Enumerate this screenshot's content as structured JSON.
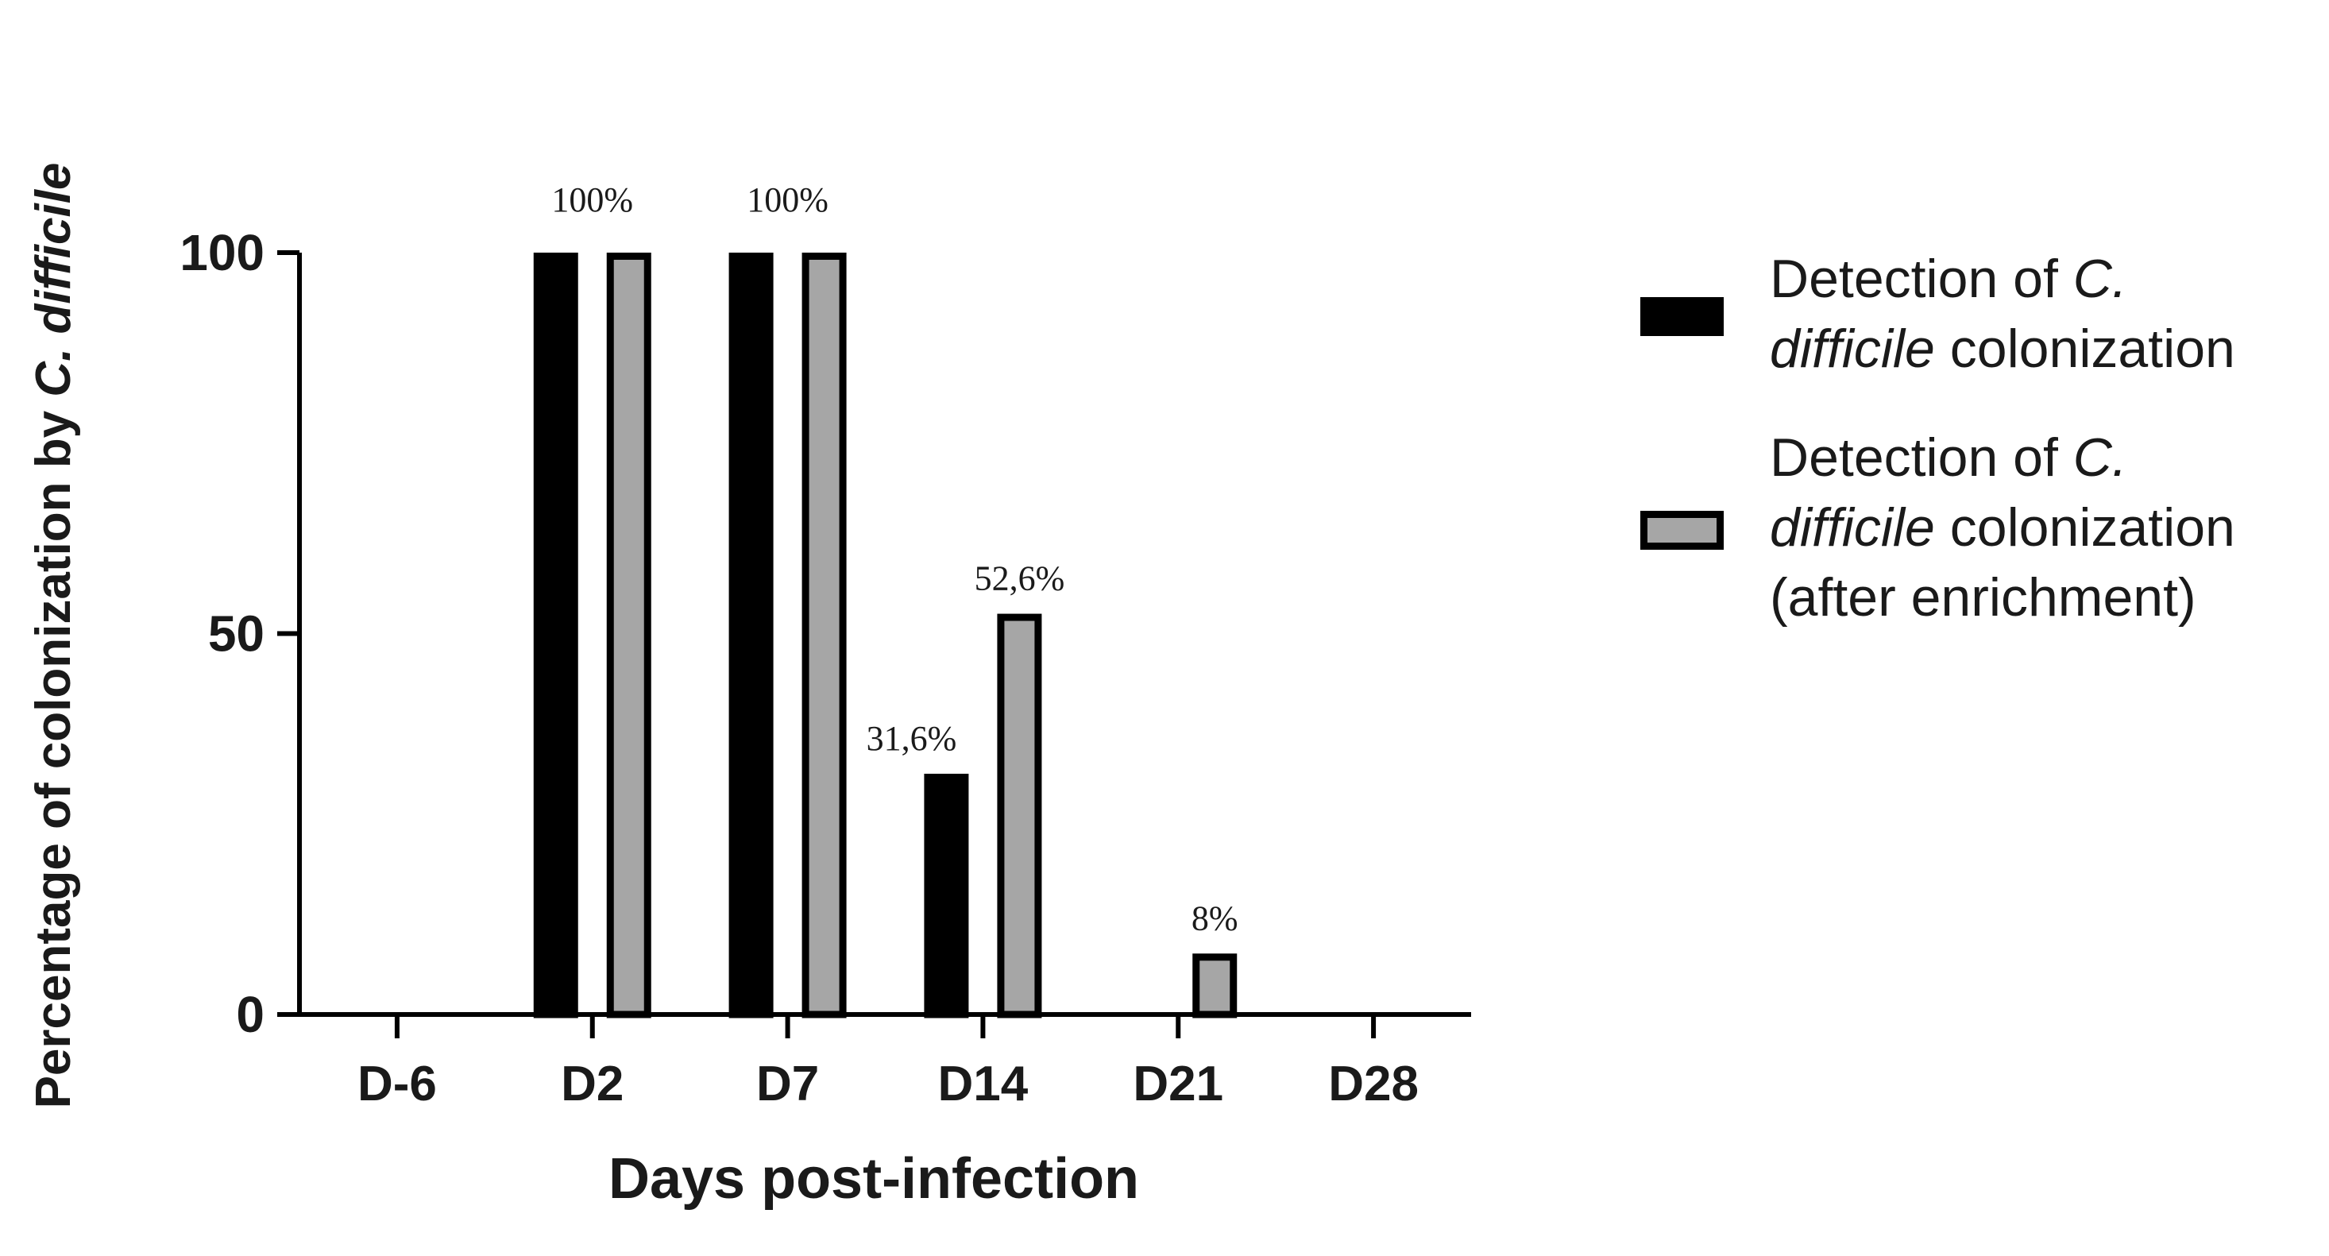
{
  "chart_data": {
    "type": "bar",
    "xlabel": "Days post-infection",
    "ylabel": {
      "plain": "Percentage of colonization by ",
      "italic": "C. difficile"
    },
    "ylim": [
      0,
      100
    ],
    "yticks": [
      0,
      50,
      100
    ],
    "categories": [
      "D-6",
      "D2",
      "D7",
      "D14",
      "D21",
      "D28"
    ],
    "series": [
      {
        "name": "Detection of C. difficile colonization",
        "legend_lines": [
          [
            {
              "text": "Detection of ",
              "italic": false
            },
            {
              "text": "C.",
              "italic": true
            }
          ],
          [
            {
              "text": "difficile",
              "italic": true
            },
            {
              "text": " colonization",
              "italic": false
            }
          ]
        ],
        "color": "#000000",
        "values": [
          0,
          100,
          100,
          31.6,
          0,
          0
        ],
        "labels": [
          "",
          "",
          "",
          "31,6%",
          "",
          ""
        ]
      },
      {
        "name": "Detection of C. difficile colonization (after enrichment)",
        "legend_lines": [
          [
            {
              "text": "Detection of ",
              "italic": false
            },
            {
              "text": "C.",
              "italic": true
            }
          ],
          [
            {
              "text": "difficile",
              "italic": true
            },
            {
              "text": " colonization",
              "italic": false
            }
          ],
          [
            {
              "text": "(after enrichment)",
              "italic": false
            }
          ]
        ],
        "color": "#a6a6a6",
        "values": [
          0,
          100,
          100,
          52.6,
          8,
          0
        ],
        "labels": [
          "",
          "",
          "",
          "52,6%",
          "8%",
          ""
        ]
      }
    ],
    "group_labels": [
      "",
      "100%",
      "100%",
      "",
      "",
      ""
    ],
    "legend_position": "right",
    "grid": false
  }
}
